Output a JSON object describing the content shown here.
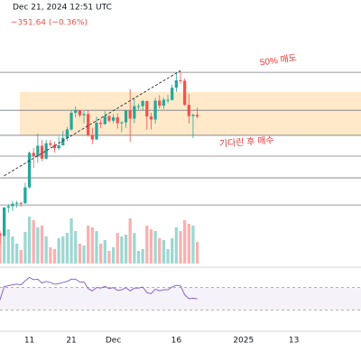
{
  "chart_data": {
    "type": "candlestick",
    "title": "Dec 21, 2024 12:51 UTC",
    "subtitle": "−351.64 (−0.36%)",
    "annotations": [
      "50% 매도",
      "기다린 후 매수"
    ],
    "x": [
      "2024-11-04",
      "2024-11-05",
      "2024-11-06",
      "2024-11-07",
      "2024-11-08",
      "2024-11-09",
      "2024-11-10",
      "2024-11-11",
      "2024-11-12",
      "2024-11-13",
      "2024-11-14",
      "2024-11-15",
      "2024-11-16",
      "2024-11-17",
      "2024-11-18",
      "2024-11-19",
      "2024-11-20",
      "2024-11-21",
      "2024-11-22",
      "2024-11-23",
      "2024-11-24",
      "2024-11-25",
      "2024-11-26",
      "2024-11-27",
      "2024-11-28",
      "2024-11-29",
      "2024-11-30",
      "2024-12-01",
      "2024-12-02",
      "2024-12-03",
      "2024-12-04",
      "2024-12-05",
      "2024-12-06",
      "2024-12-07",
      "2024-12-08",
      "2024-12-09",
      "2024-12-10",
      "2024-12-11",
      "2024-12-12",
      "2024-12-13",
      "2024-12-14",
      "2024-12-15",
      "2024-12-16",
      "2024-12-17",
      "2024-12-18",
      "2024-12-19",
      "2024-12-20",
      "2024-12-21"
    ],
    "open": [
      69400,
      68800,
      75600,
      75900,
      76500,
      76700,
      76600,
      80400,
      88700,
      87900,
      90400,
      87300,
      91000,
      90600,
      89800,
      90500,
      92300,
      94300,
      98300,
      98900,
      97700,
      98000,
      93000,
      91900,
      95900,
      95600,
      97500,
      96400,
      97200,
      95800,
      96000,
      98800,
      96900,
      99900,
      99900,
      101100,
      97400,
      96700,
      101200,
      100000,
      101400,
      101400,
      104300,
      106100,
      106000,
      100200,
      97500,
      97800
    ],
    "high": [
      70000,
      75700,
      76400,
      77200,
      77200,
      77000,
      81500,
      89000,
      89900,
      93300,
      91800,
      91800,
      91800,
      91400,
      92600,
      94000,
      94900,
      99000,
      99800,
      99000,
      98700,
      98900,
      94700,
      97400,
      96700,
      98700,
      97800,
      98000,
      98200,
      96300,
      99000,
      104000,
      101900,
      100500,
      101400,
      101200,
      98300,
      101900,
      102500,
      101900,
      102600,
      105000,
      107800,
      108300,
      106500,
      102800,
      98100,
      99500
    ],
    "low": [
      66800,
      68700,
      74400,
      74800,
      75600,
      75800,
      76500,
      80200,
      85100,
      86300,
      86700,
      87100,
      90100,
      88800,
      89400,
      90400,
      91500,
      94000,
      97200,
      97200,
      95800,
      92600,
      90800,
      91800,
      94700,
      95400,
      96000,
      95800,
      94500,
      93600,
      94700,
      91300,
      95800,
      99000,
      98800,
      94200,
      94300,
      95700,
      99300,
      99200,
      100600,
      101200,
      103300,
      105300,
      100000,
      95700,
      92200,
      97000
    ],
    "close": [
      68800,
      75600,
      75900,
      76500,
      76700,
      76600,
      80400,
      88700,
      87900,
      90400,
      87300,
      91000,
      90600,
      89800,
      90500,
      92300,
      94300,
      98300,
      98900,
      97700,
      98000,
      93000,
      91900,
      95900,
      95600,
      97500,
      96400,
      97200,
      95800,
      96000,
      98800,
      96900,
      99900,
      99900,
      101100,
      97400,
      96700,
      101200,
      100000,
      101400,
      101400,
      104300,
      106100,
      106000,
      100200,
      97500,
      97800,
      97400
    ],
    "volume": [
      30,
      55,
      38,
      30,
      22,
      15,
      35,
      52,
      48,
      40,
      42,
      30,
      18,
      16,
      28,
      30,
      34,
      50,
      36,
      22,
      20,
      42,
      40,
      36,
      22,
      26,
      14,
      18,
      34,
      30,
      32,
      50,
      34,
      14,
      16,
      42,
      38,
      36,
      28,
      26,
      16,
      28,
      40,
      36,
      48,
      44,
      42,
      24
    ],
    "rsi": [
      48,
      72,
      73,
      75,
      76,
      75,
      82,
      88,
      84,
      85,
      78,
      81,
      79,
      76,
      77,
      79,
      81,
      85,
      85,
      80,
      80,
      68,
      64,
      70,
      69,
      72,
      68,
      70,
      65,
      66,
      70,
      64,
      69,
      69,
      71,
      61,
      59,
      67,
      64,
      66,
      66,
      71,
      74,
      73,
      57,
      50,
      51,
      50
    ],
    "levels": [
      108000,
      98900,
      92900,
      87900,
      82700,
      76200
    ],
    "zone": [
      92900,
      103300
    ],
    "trendline": {
      "x": [
        "2024-11-05",
        "2024-12-17"
      ],
      "y": [
        83200,
        108400
      ]
    },
    "xlim": [
      "2024-11-04",
      "2025-01-29"
    ],
    "ylim": [
      62600,
      121000
    ],
    "volume_lim": [
      0,
      60
    ],
    "rsi_lim": [
      0,
      100
    ],
    "rsi_bands": [
      70,
      30
    ],
    "xticks": [
      {
        "value": "2024-11-11",
        "label": "11"
      },
      {
        "value": "2024-11-21",
        "label": "21"
      },
      {
        "value": "2024-12-01",
        "label": "Dec"
      },
      {
        "value": "2024-12-16",
        "label": "16"
      },
      {
        "value": "2025-01-01",
        "label": "2025"
      },
      {
        "value": "2025-01-13",
        "label": "13"
      }
    ],
    "up_color": "#26a69a",
    "down_color": "#ef5350",
    "rsi_color": "#7e57c2",
    "level_color": "#787b86",
    "zone_color": "#ffe0b2",
    "annotation_color": "#e53935"
  }
}
